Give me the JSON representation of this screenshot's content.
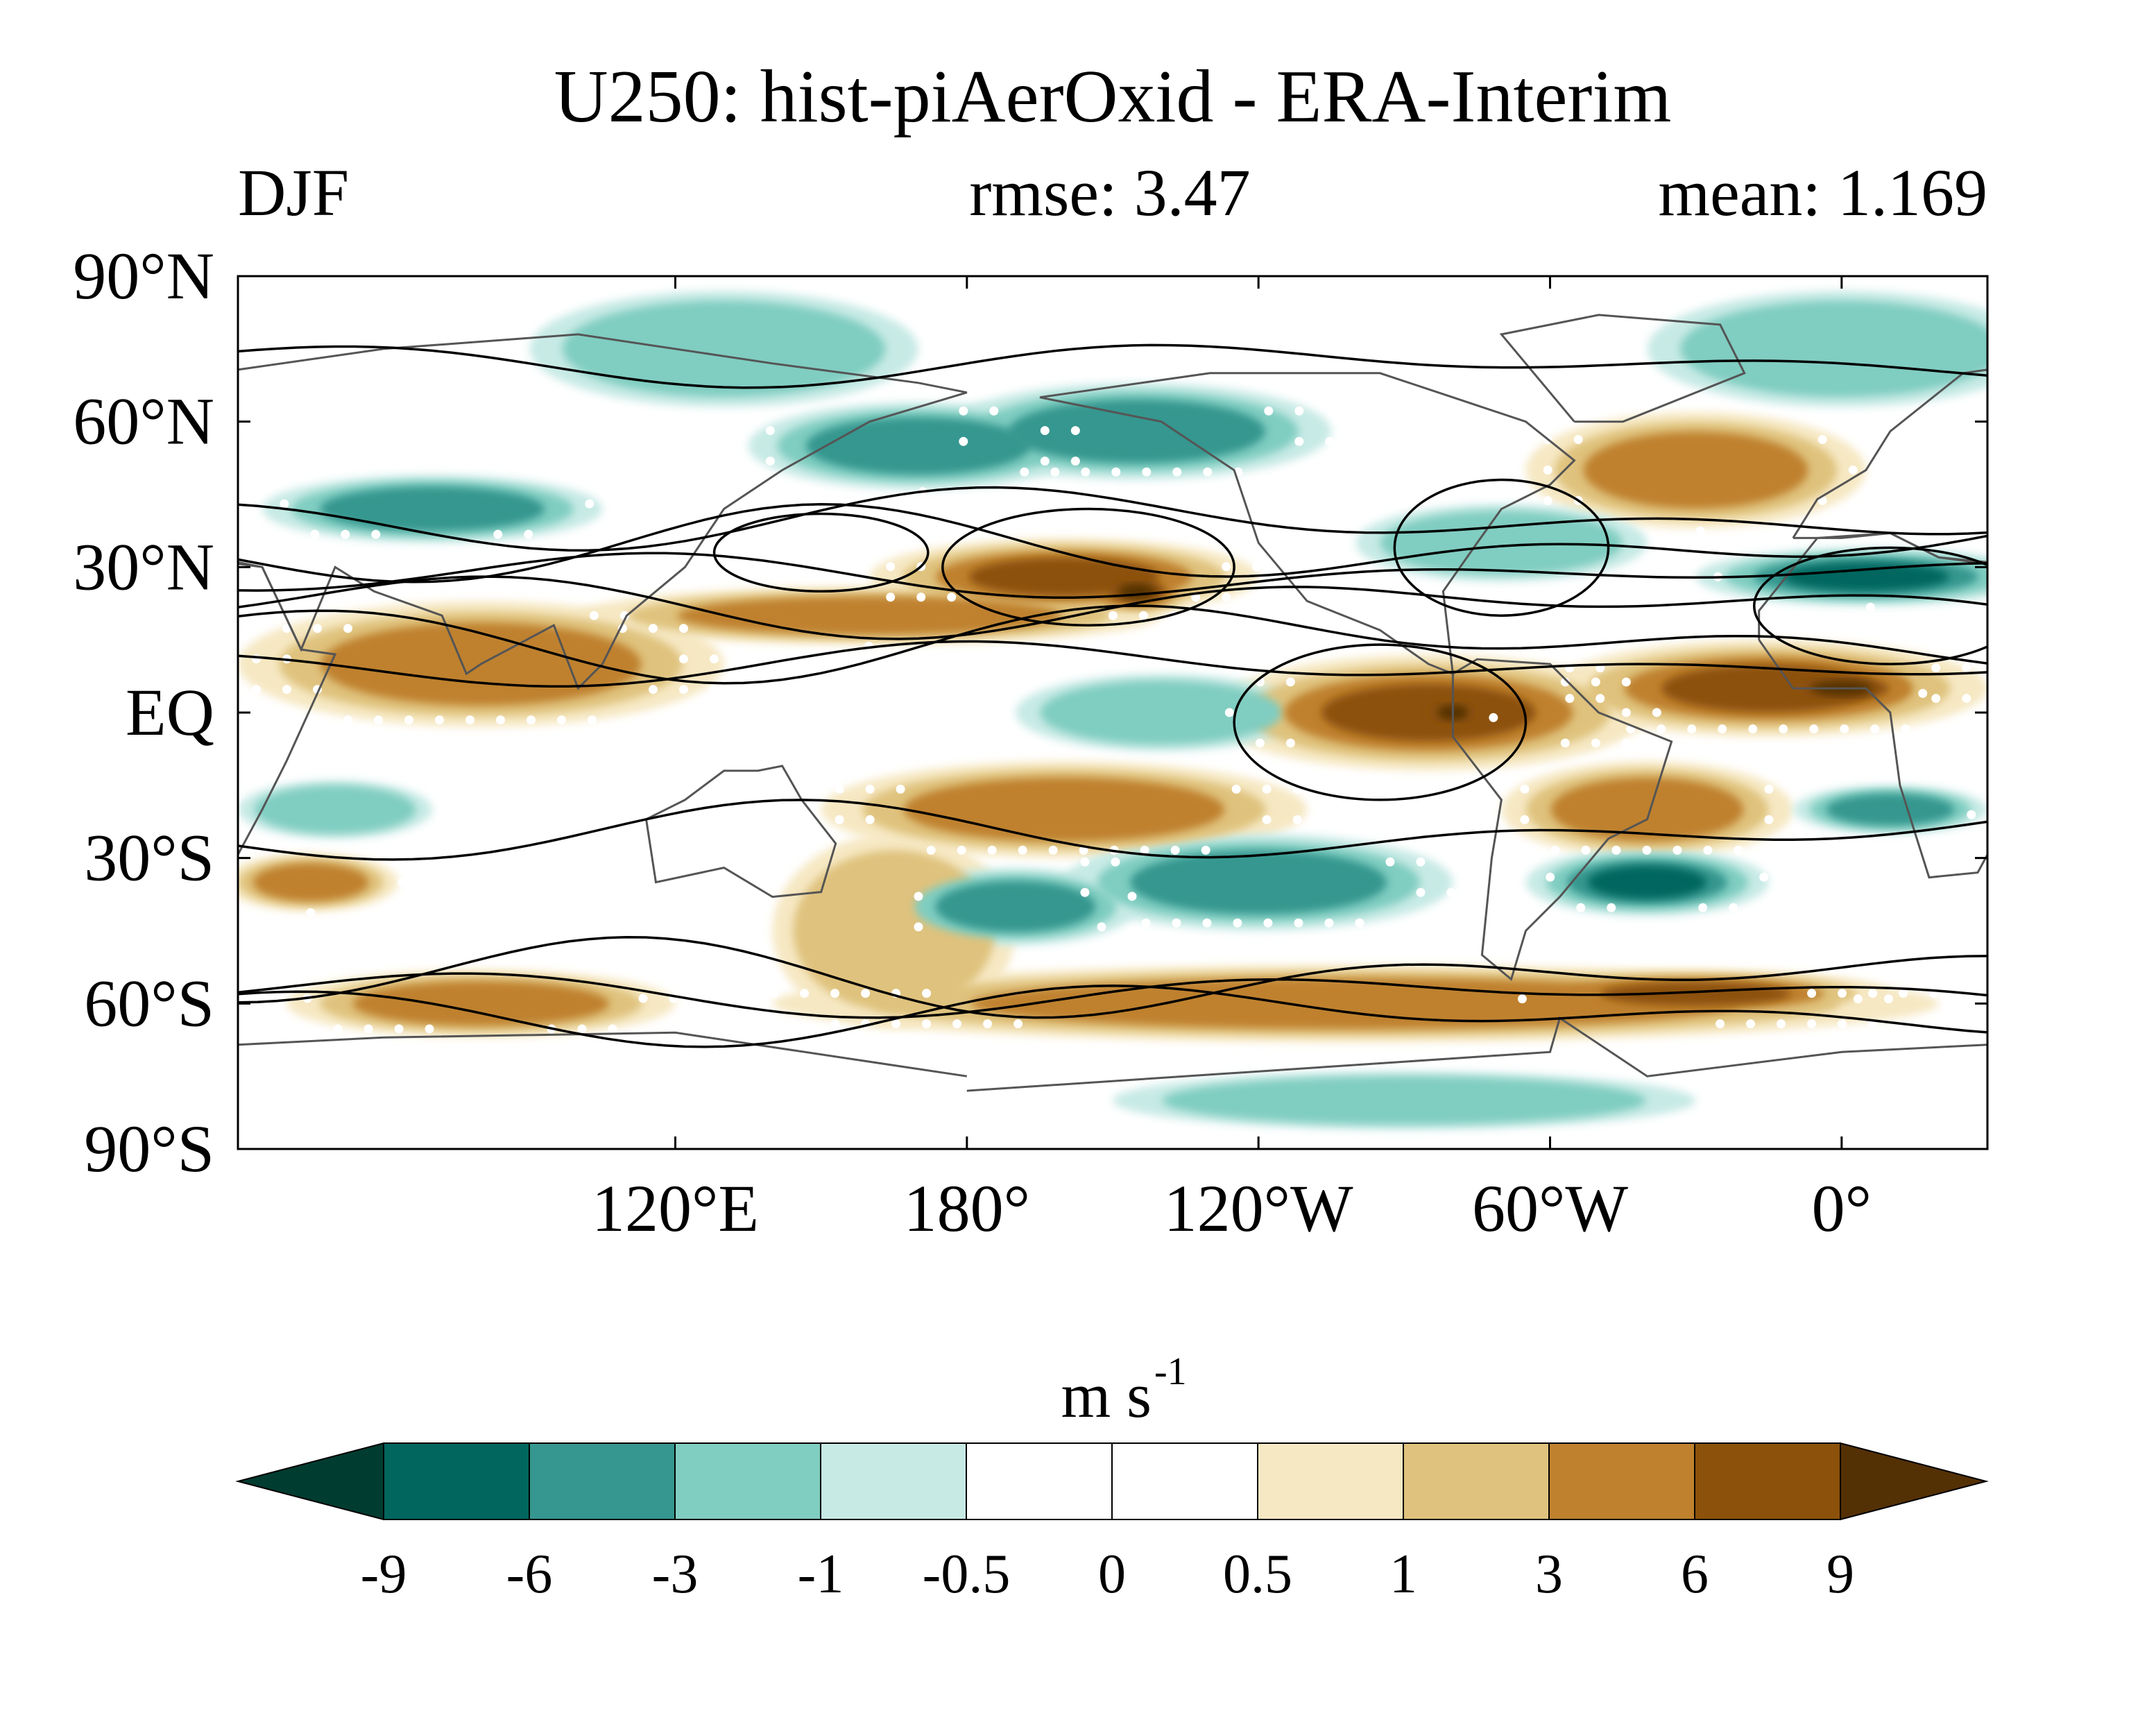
{
  "chart_data": {
    "type": "heatmap",
    "title": "U250: hist-piAerOxid - ERA-Interim",
    "season": "DJF",
    "rmse_label": "rmse: 3.47",
    "mean_label": "mean: 1.169",
    "units_base": "m s",
    "units_exp": "-1",
    "projection": "equirectangular, centred near 30°W",
    "lon_range": [
      30,
      390
    ],
    "lat_range": [
      -90,
      90
    ],
    "y_ticks": [
      {
        "lat": 90,
        "label": "90°N"
      },
      {
        "lat": 60,
        "label": "60°N"
      },
      {
        "lat": 30,
        "label": "30°N"
      },
      {
        "lat": 0,
        "label": "EQ"
      },
      {
        "lat": -30,
        "label": "30°S"
      },
      {
        "lat": -60,
        "label": "60°S"
      },
      {
        "lat": -90,
        "label": "90°S"
      }
    ],
    "x_ticks": [
      {
        "lon": 120,
        "label": "120°E"
      },
      {
        "lon": 180,
        "label": "180°"
      },
      {
        "lon": 240,
        "label": "120°W"
      },
      {
        "lon": 300,
        "label": "60°W"
      },
      {
        "lon": 360,
        "label": "0°"
      }
    ],
    "colorbar": {
      "levels": [
        "-9",
        "-6",
        "-3",
        "-1",
        "-0.5",
        "0",
        "0.5",
        "1",
        "3",
        "6",
        "9"
      ],
      "colors": [
        "#01665e",
        "#35978f",
        "#80cdc1",
        "#c7eae5",
        "#ffffff",
        "#ffffff",
        "#f6e8c3",
        "#dfc27d",
        "#bf812d",
        "#8c510a"
      ],
      "under_color": "#003c30",
      "over_color": "#543005",
      "extend": "both"
    },
    "anomaly_blobs": [
      {
        "lon": 80,
        "lat": 10,
        "value": 5,
        "rlon": 50,
        "rlat": 13
      },
      {
        "lon": 160,
        "lat": 20,
        "value": 4,
        "rlon": 60,
        "rlat": 6
      },
      {
        "lon": 200,
        "lat": 28,
        "value": 6,
        "rlon": 40,
        "rlat": 8
      },
      {
        "lon": 215,
        "lat": 25,
        "value": 9,
        "rlon": 12,
        "rlat": 5
      },
      {
        "lon": 275,
        "lat": 0,
        "value": 7,
        "rlon": 45,
        "rlat": 12
      },
      {
        "lon": 280,
        "lat": 0,
        "value": 9,
        "rlon": 10,
        "rlat": 5
      },
      {
        "lon": 345,
        "lat": 5,
        "value": 7,
        "rlon": 45,
        "rlat": 10
      },
      {
        "lon": 360,
        "lat": 5,
        "value": 9,
        "rlon": 20,
        "rlat": 5
      },
      {
        "lon": 330,
        "lat": 50,
        "value": 4,
        "rlon": 35,
        "rlat": 12
      },
      {
        "lon": 45,
        "lat": -35,
        "value": 5,
        "rlon": 18,
        "rlat": 6
      },
      {
        "lon": 200,
        "lat": -20,
        "value": 3,
        "rlon": 50,
        "rlat": 10
      },
      {
        "lon": 320,
        "lat": -20,
        "value": 4,
        "rlon": 30,
        "rlat": 10
      },
      {
        "lon": 260,
        "lat": -60,
        "value": 4,
        "rlon": 120,
        "rlat": 8
      },
      {
        "lon": 330,
        "lat": -58,
        "value": 6,
        "rlon": 40,
        "rlat": 5
      },
      {
        "lon": 80,
        "lat": -60,
        "value": 4,
        "rlon": 40,
        "rlat": 7
      },
      {
        "lon": 165,
        "lat": -45,
        "value": 2,
        "rlon": 25,
        "rlat": 20
      },
      {
        "lon": 170,
        "lat": 55,
        "value": -5,
        "rlon": 35,
        "rlat": 9
      },
      {
        "lon": 215,
        "lat": 58,
        "value": -4,
        "rlon": 40,
        "rlat": 10
      },
      {
        "lon": 70,
        "lat": 42,
        "value": -4,
        "rlon": 35,
        "rlat": 7
      },
      {
        "lon": 365,
        "lat": 28,
        "value": -7,
        "rlon": 35,
        "rlat": 6
      },
      {
        "lon": 320,
        "lat": -35,
        "value": -6,
        "rlon": 25,
        "rlat": 7
      },
      {
        "lon": 240,
        "lat": -35,
        "value": -3,
        "rlon": 40,
        "rlat": 10
      },
      {
        "lon": 190,
        "lat": -40,
        "value": -4,
        "rlon": 25,
        "rlat": 8
      },
      {
        "lon": 130,
        "lat": 75,
        "value": -2,
        "rlon": 40,
        "rlat": 12
      },
      {
        "lon": 360,
        "lat": 75,
        "value": -2,
        "rlon": 40,
        "rlat": 12
      },
      {
        "lon": 220,
        "lat": 0,
        "value": -2,
        "rlon": 30,
        "rlat": 8
      },
      {
        "lon": 370,
        "lat": -20,
        "value": -4,
        "rlon": 20,
        "rlat": 5
      },
      {
        "lon": 290,
        "lat": 35,
        "value": -2,
        "rlon": 30,
        "rlat": 8
      },
      {
        "lon": 50,
        "lat": -20,
        "value": -2,
        "rlon": 20,
        "rlat": 6
      },
      {
        "lon": 270,
        "lat": -80,
        "value": -1,
        "rlon": 60,
        "rlat": 6
      }
    ],
    "climatology_contour_lats": [
      72,
      40,
      34,
      28,
      22,
      15,
      10,
      -25,
      -55,
      -58,
      -62
    ]
  }
}
